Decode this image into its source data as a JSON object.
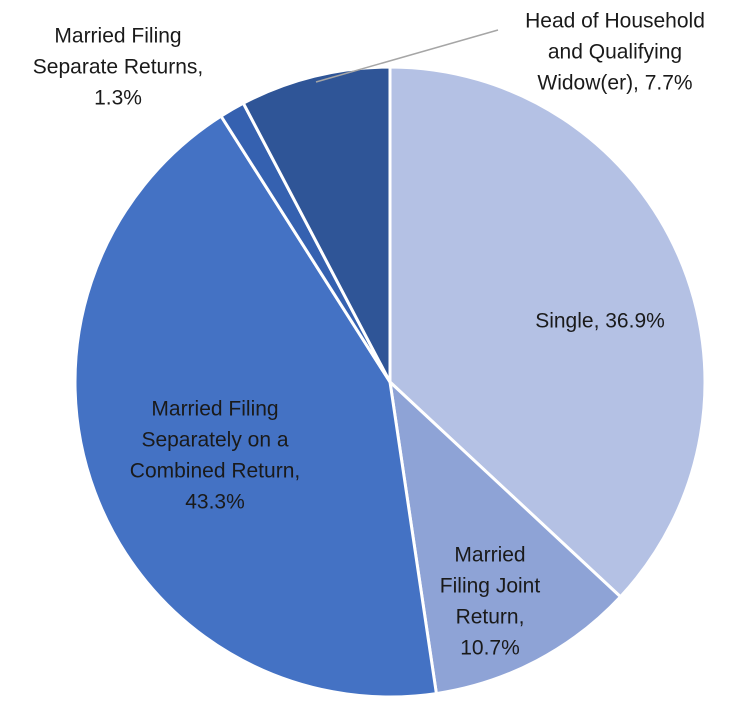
{
  "chart_data": {
    "type": "pie",
    "values": [
      36.9,
      10.7,
      43.3,
      1.3,
      7.7
    ],
    "value_labels": [
      [
        "Single, 36.9%"
      ],
      [
        "Married",
        "Filing Joint",
        "Return,",
        "10.7%"
      ],
      [
        "Married Filing",
        "Separately on a",
        "Combined Return,",
        "43.3%"
      ],
      [
        "Married Filing",
        "Separate Returns,",
        "1.3%"
      ],
      [
        "Head of Household",
        "and Qualifying",
        "Widow(er), 7.7%"
      ]
    ],
    "colors": [
      "#b4c1e4",
      "#8ea3d6",
      "#4472c4",
      "#3561b0",
      "#2f5597"
    ]
  }
}
